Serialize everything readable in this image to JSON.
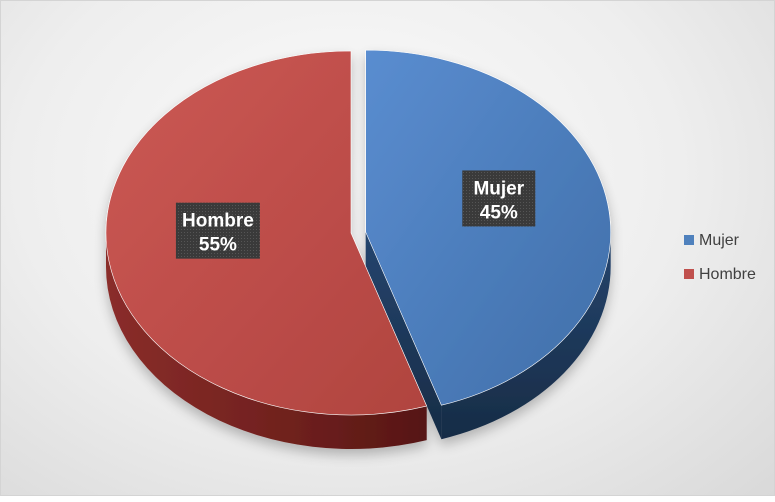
{
  "chart_data": {
    "type": "pie",
    "categories": [
      "Mujer",
      "Hombre"
    ],
    "values": [
      45,
      55
    ],
    "units": "%",
    "data_labels": [
      {
        "name": "Mujer",
        "percent": "45%"
      },
      {
        "name": "Hombre",
        "percent": "55%"
      }
    ],
    "colors": [
      "#4f81bd",
      "#c0504d"
    ],
    "side_colors": [
      "#1f3a5c",
      "#6e1f1c"
    ],
    "legend": {
      "position": "right",
      "entries": [
        "Mujer",
        "Hombre"
      ]
    },
    "style": "3d-exploded",
    "exploded_slice": "Mujer"
  }
}
